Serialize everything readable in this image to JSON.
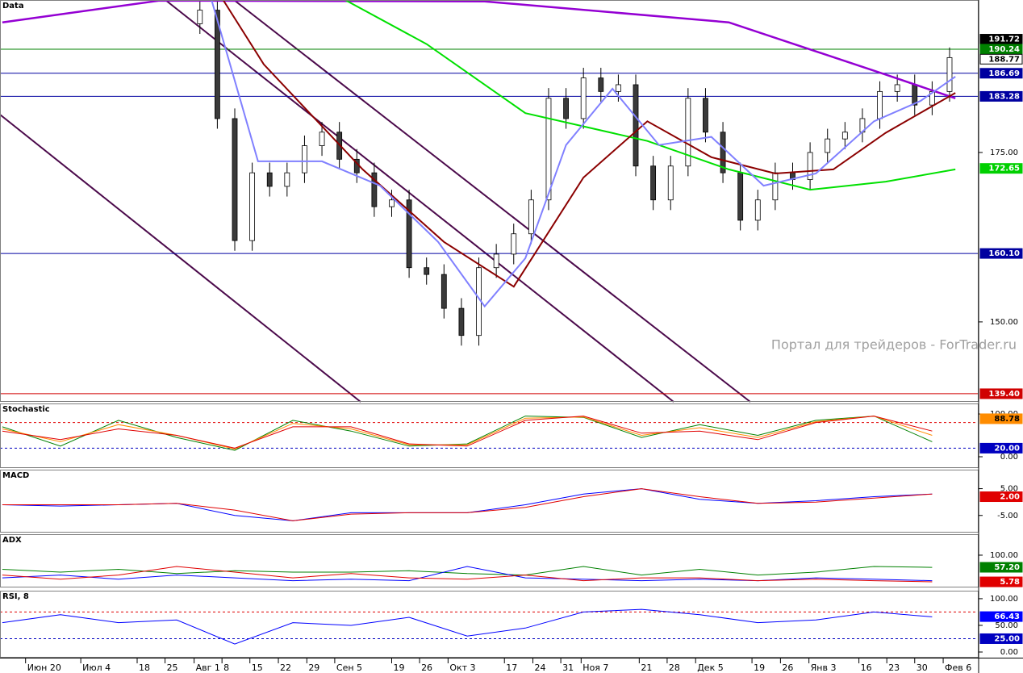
{
  "chart_data": [
    {
      "type": "candlestick",
      "title": "Data",
      "annotation": "Портал для трейдеров - ForTrader.ru",
      "xlim": [
        -0.4,
        168
      ],
      "ylim": [
        138.2,
        197.5
      ],
      "yticks": [
        {
          "value": 175,
          "label": "175.00"
        },
        {
          "value": 150,
          "label": "150.00"
        }
      ],
      "xticks": [
        {
          "value": 4,
          "label": "Июн 20"
        },
        {
          "value": 13.5,
          "label": "Июл 4"
        },
        {
          "value": 23.2,
          "label": "18"
        },
        {
          "value": 28,
          "label": "25"
        },
        {
          "value": 33,
          "label": "Авг 1"
        },
        {
          "value": 37.8,
          "label": "8"
        },
        {
          "value": 42.6,
          "label": "15"
        },
        {
          "value": 47.5,
          "label": "22"
        },
        {
          "value": 52.4,
          "label": "29"
        },
        {
          "value": 57.2,
          "label": "Сен 5"
        },
        {
          "value": 67,
          "label": "19"
        },
        {
          "value": 71.8,
          "label": "26"
        },
        {
          "value": 76.7,
          "label": "Окт 3"
        },
        {
          "value": 86.4,
          "label": "17"
        },
        {
          "value": 91.3,
          "label": "24"
        },
        {
          "value": 96.1,
          "label": "31"
        },
        {
          "value": 99.6,
          "label": "Ноя 7"
        },
        {
          "value": 109.6,
          "label": "21"
        },
        {
          "value": 114.4,
          "label": "28"
        },
        {
          "value": 119.3,
          "label": "Дек 5"
        },
        {
          "value": 129,
          "label": "19"
        },
        {
          "value": 133.9,
          "label": "26"
        },
        {
          "value": 138.8,
          "label": "Янв 3"
        },
        {
          "value": 147.4,
          "label": "16"
        },
        {
          "value": 152.2,
          "label": "23"
        },
        {
          "value": 157,
          "label": "30"
        },
        {
          "value": 161.9,
          "label": "Фев 6"
        }
      ],
      "x": [
        34,
        37,
        40,
        43,
        46,
        49,
        52,
        55,
        58,
        61,
        64,
        67,
        70,
        73,
        76,
        79,
        82,
        85,
        88,
        91,
        94,
        97,
        100,
        103,
        106,
        109,
        112,
        115,
        118,
        121,
        124,
        127,
        130,
        133,
        136,
        139,
        142,
        145,
        148,
        151,
        154,
        157,
        160,
        163
      ],
      "open": [
        194,
        196,
        180,
        162,
        172,
        170,
        172,
        176,
        178,
        174,
        172,
        167,
        168,
        158,
        157,
        152,
        148,
        158,
        160,
        163,
        168,
        183,
        180,
        186,
        184,
        185,
        173,
        168,
        173,
        183,
        178,
        172,
        165,
        168,
        172,
        171,
        175,
        177,
        178,
        180,
        184,
        185,
        182,
        184
      ],
      "high": [
        197.5,
        197.5,
        181.5,
        173.5,
        173.5,
        173.5,
        177.5,
        179.5,
        179.5,
        175.5,
        173.5,
        169.5,
        169.5,
        159.5,
        158.5,
        153.5,
        159.5,
        161.5,
        164.5,
        169.5,
        184.5,
        184.5,
        187.5,
        187.5,
        186.5,
        186.5,
        174.5,
        174.5,
        184.5,
        184.5,
        179.5,
        173.5,
        169.5,
        173.5,
        173.5,
        176.5,
        178.5,
        179.5,
        181.5,
        185.5,
        186.5,
        186.5,
        185.5,
        190.5
      ],
      "low": [
        192.5,
        178.5,
        160.5,
        160.5,
        168.5,
        168.5,
        170.5,
        174.5,
        172.5,
        170.5,
        165.5,
        165.5,
        156.5,
        155.5,
        150.5,
        146.5,
        146.5,
        156.5,
        158.5,
        161.5,
        166.5,
        178.5,
        178.5,
        182.5,
        182.5,
        171.5,
        166.5,
        166.5,
        171.5,
        176.5,
        170.5,
        163.5,
        163.5,
        166.5,
        169.5,
        169.5,
        173.5,
        175.5,
        176.5,
        178.5,
        182.5,
        180.5,
        180.5,
        182.5
      ],
      "close": [
        196,
        180,
        162,
        172,
        170,
        172,
        176,
        178,
        174,
        172,
        167,
        168,
        158,
        157,
        152,
        148,
        158,
        160,
        163,
        168,
        183,
        180,
        186,
        184,
        185,
        173,
        168,
        173,
        183,
        178,
        172,
        165,
        168,
        172,
        171,
        175,
        177,
        178,
        180,
        184,
        185,
        182,
        184,
        189
      ],
      "series": [
        {
          "color": "#9400d3",
          "x": [
            0,
            27,
            83,
            125,
            152,
            164
          ],
          "values": [
            194.2,
            197.4,
            197.3,
            194.2,
            186.5,
            183
          ]
        },
        {
          "color": "#00e000",
          "x": [
            59,
            73,
            90,
            111,
            125,
            139,
            152,
            164
          ],
          "values": [
            197.5,
            191,
            180.8,
            176.7,
            172.5,
            169.5,
            170.7,
            172.5
          ]
        },
        {
          "color": "#8b0000",
          "x": [
            38,
            45,
            62,
            76,
            88,
            100,
            111,
            122,
            133,
            143,
            152,
            164
          ],
          "values": [
            197.5,
            188,
            172.5,
            161.8,
            155.2,
            171.3,
            179.6,
            174.3,
            171.9,
            172.5,
            177.9,
            183.8
          ]
        },
        {
          "color": "#8080ff",
          "x": [
            36,
            44,
            55,
            65,
            75,
            83,
            90,
            97,
            105,
            113,
            122,
            131,
            140,
            150,
            158,
            164
          ],
          "values": [
            197.5,
            173.7,
            173.7,
            170.1,
            161.8,
            152.3,
            159.4,
            176.1,
            184.4,
            176.1,
            177.3,
            170.1,
            171.9,
            179.6,
            182.6,
            186.2
          ]
        }
      ],
      "levels": [
        {
          "value": 190.24,
          "color": "#008000"
        },
        {
          "value": 186.69,
          "color": "#0000a0",
          "label": "186.69"
        },
        {
          "value": 183.28,
          "color": "#0000a0",
          "label": "183.28"
        },
        {
          "value": 160.1,
          "color": "#0000a0",
          "label": "160.10"
        },
        {
          "value": 139.4,
          "color": "#d00000",
          "label": "139.40"
        }
      ],
      "markers": [
        {
          "value": 191.72,
          "label": "191.72",
          "color": "#000000"
        },
        {
          "value": 190.24,
          "label": "190.24",
          "color": "#008000"
        },
        {
          "value": 188.77,
          "label": "188.77",
          "color": "#ffffff"
        },
        {
          "value": 172.65,
          "label": "172.65",
          "color": "#00d000"
        }
      ]
    },
    {
      "type": "line",
      "title": "Stochastic",
      "xlim": [
        -0.4,
        168
      ],
      "ylim": [
        -26.4,
        124.5
      ],
      "yticks": [
        {
          "value": 100,
          "label": "100.00"
        },
        {
          "value": 0,
          "label": "0.00"
        }
      ],
      "x": [
        0,
        10,
        20,
        30,
        40,
        50,
        60,
        70,
        80,
        90,
        100,
        110,
        120,
        130,
        140,
        150,
        160
      ],
      "series": [
        {
          "color": "#008000",
          "values": [
            70,
            25,
            85,
            45,
            15,
            85,
            60,
            25,
            30,
            95,
            92,
            45,
            75,
            50,
            85,
            95,
            35
          ]
        },
        {
          "color": "#ff8c00",
          "values": [
            65,
            35,
            75,
            50,
            18,
            78,
            65,
            28,
            28,
            90,
            93,
            50,
            68,
            45,
            82,
            95,
            50
          ]
        },
        {
          "color": "#e00000",
          "values": [
            60,
            40,
            65,
            50,
            20,
            70,
            70,
            30,
            25,
            85,
            95,
            55,
            60,
            40,
            80,
            95,
            60
          ]
        }
      ],
      "levels": [
        {
          "value": 80,
          "color": "#e00000",
          "style": "dashed"
        },
        {
          "value": 20,
          "color": "#0000c0",
          "style": "dashed",
          "label": "20.00"
        }
      ],
      "markers": [
        {
          "value": 88.78,
          "label": "88.78",
          "color": "#ff8c00"
        }
      ]
    },
    {
      "type": "line",
      "title": "MACD",
      "xlim": [
        -0.4,
        168
      ],
      "ylim": [
        -11.4,
        12.1
      ],
      "yticks": [
        {
          "value": 5,
          "label": "5.00"
        },
        {
          "value": -5,
          "label": "-5.00"
        }
      ],
      "x": [
        0,
        10,
        20,
        30,
        40,
        50,
        60,
        70,
        80,
        90,
        100,
        110,
        120,
        130,
        140,
        150,
        160
      ],
      "series": [
        {
          "color": "#0000ff",
          "values": [
            -1,
            -1.5,
            -1,
            -0.5,
            -5,
            -7,
            -4,
            -4,
            -4,
            -1,
            3,
            5,
            1,
            -0.5,
            0.5,
            2,
            3
          ]
        },
        {
          "color": "#e00000",
          "values": [
            -1,
            -1,
            -1,
            -0.5,
            -3,
            -7,
            -4.5,
            -4,
            -4,
            -2,
            2,
            5,
            2,
            -0.5,
            0,
            1.5,
            3
          ]
        }
      ],
      "markers": [
        {
          "value": 2,
          "label": "2.00",
          "color": "#e00000"
        }
      ]
    },
    {
      "type": "line",
      "title": "ADX",
      "xlim": [
        -0.4,
        168
      ],
      "ylim": [
        -14,
        174
      ],
      "yticks": [
        {
          "value": 100,
          "label": "100.00"
        }
      ],
      "x": [
        0,
        10,
        20,
        30,
        40,
        50,
        60,
        70,
        80,
        90,
        100,
        110,
        120,
        130,
        140,
        150,
        160
      ],
      "series": [
        {
          "color": "#008000",
          "values": [
            50,
            40,
            50,
            35,
            45,
            40,
            40,
            45,
            35,
            30,
            60,
            30,
            50,
            30,
            40,
            60,
            57
          ]
        },
        {
          "color": "#0000ff",
          "values": [
            20,
            30,
            15,
            30,
            20,
            10,
            15,
            10,
            60,
            20,
            15,
            10,
            15,
            10,
            20,
            15,
            10
          ]
        },
        {
          "color": "#e00000",
          "values": [
            30,
            15,
            30,
            60,
            40,
            20,
            35,
            20,
            15,
            30,
            10,
            20,
            20,
            10,
            15,
            10,
            6
          ]
        }
      ],
      "markers": [
        {
          "value": 57.2,
          "label": "57.20",
          "color": "#008000"
        },
        {
          "value": 5.78,
          "color": "#e00000"
        }
      ]
    },
    {
      "type": "line",
      "title": "RSI, 8",
      "xlim": [
        -0.4,
        168
      ],
      "ylim": [
        -10.6,
        115
      ],
      "yticks": [
        {
          "value": 100,
          "label": "100.00"
        },
        {
          "value": 50,
          "label": "50.00"
        },
        {
          "value": 0,
          "label": "0.00"
        }
      ],
      "x": [
        0,
        10,
        20,
        30,
        40,
        50,
        60,
        70,
        80,
        90,
        100,
        110,
        120,
        130,
        140,
        150,
        160
      ],
      "series": [
        {
          "color": "#0000ff",
          "values": [
            55,
            70,
            55,
            60,
            15,
            55,
            50,
            65,
            30,
            45,
            75,
            80,
            70,
            55,
            60,
            75,
            66
          ]
        }
      ],
      "levels": [
        {
          "value": 75,
          "color": "#e00000",
          "style": "dashed"
        },
        {
          "value": 25,
          "color": "#0000c0",
          "style": "dashed",
          "label": "25.00"
        }
      ],
      "markers": [
        {
          "value": 66.43,
          "label": "66.43",
          "color": "#0000ff"
        }
      ]
    }
  ]
}
